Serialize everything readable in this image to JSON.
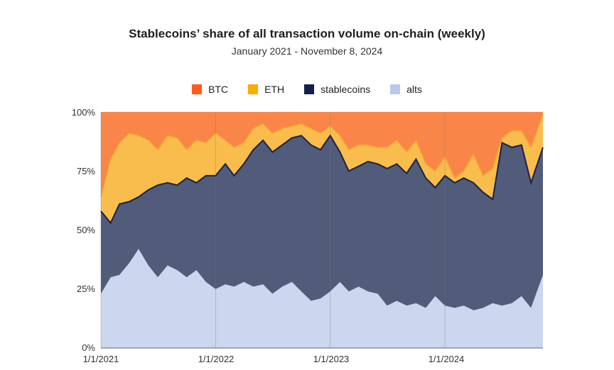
{
  "chart_data": {
    "type": "area",
    "title": "Stablecoins’ share of all transaction volume on-chain (weekly)",
    "subtitle": "January 2021 - November 8, 2024",
    "stacked": true,
    "percent": true,
    "ylim": [
      0,
      100
    ],
    "y_ticks": [
      "0%",
      "25%",
      "50%",
      "75%",
      "100%"
    ],
    "x_ticks": [
      "1/1/2021",
      "1/1/2022",
      "1/1/2023",
      "1/1/2024"
    ],
    "legend_position": "top-center",
    "grid": "vertical lines at year boundaries",
    "colors": {
      "BTC": "#f98648",
      "ETH": "#f9bd4d",
      "stablecoins": "#515b7a",
      "stablecoins_line": "#18224a",
      "alts": "#cbd6ef"
    },
    "series": [
      {
        "name": "BTC",
        "legend_color": "#ff5a1f"
      },
      {
        "name": "ETH",
        "legend_color": "#ffab00"
      },
      {
        "name": "stablecoins",
        "legend_color": "#14204a"
      },
      {
        "name": "alts",
        "legend_color": "#b8c8ec"
      }
    ],
    "x_dates": [
      "2021-01-01",
      "2021-02-01",
      "2021-03-01",
      "2021-04-01",
      "2021-05-01",
      "2021-06-01",
      "2021-07-01",
      "2021-08-01",
      "2021-09-01",
      "2021-10-01",
      "2021-11-01",
      "2021-12-01",
      "2022-01-01",
      "2022-02-01",
      "2022-03-01",
      "2022-04-01",
      "2022-05-01",
      "2022-06-01",
      "2022-07-01",
      "2022-08-01",
      "2022-09-01",
      "2022-10-01",
      "2022-11-01",
      "2022-12-01",
      "2023-01-01",
      "2023-02-01",
      "2023-03-01",
      "2023-04-01",
      "2023-05-01",
      "2023-06-01",
      "2023-07-01",
      "2023-08-01",
      "2023-09-01",
      "2023-10-01",
      "2023-11-01",
      "2023-12-01",
      "2024-01-01",
      "2024-02-01",
      "2024-03-01",
      "2024-04-01",
      "2024-05-01",
      "2024-06-01",
      "2024-07-01",
      "2024-08-01",
      "2024-09-01",
      "2024-10-01",
      "2024-11-08"
    ],
    "alts_top": [
      23,
      30,
      31,
      36,
      42,
      35,
      30,
      35,
      33,
      30,
      33,
      28,
      25,
      27,
      26,
      28,
      26,
      27,
      23,
      26,
      28,
      24,
      20,
      21,
      24,
      28,
      24,
      26,
      24,
      23,
      18,
      20,
      18,
      19,
      17,
      22,
      18,
      17,
      18,
      16,
      17,
      19,
      18,
      19,
      22,
      17,
      31
    ],
    "stablecoins_top": [
      58,
      53,
      61,
      62,
      64,
      67,
      69,
      70,
      69,
      72,
      70,
      73,
      73,
      78,
      73,
      78,
      84,
      88,
      83,
      86,
      89,
      90,
      86,
      84,
      90,
      83,
      75,
      77,
      79,
      78,
      76,
      78,
      74,
      80,
      72,
      68,
      73,
      70,
      72,
      70,
      66,
      63,
      87,
      85,
      86,
      70,
      85
    ],
    "eth_top": [
      64,
      80,
      87,
      91,
      90,
      88,
      84,
      90,
      89,
      84,
      88,
      87,
      91,
      88,
      85,
      87,
      93,
      95,
      91,
      93,
      94,
      95,
      93,
      91,
      94,
      90,
      84,
      86,
      86,
      85,
      85,
      88,
      83,
      88,
      78,
      75,
      81,
      72,
      75,
      82,
      73,
      76,
      89,
      92,
      92,
      85,
      99
    ]
  }
}
